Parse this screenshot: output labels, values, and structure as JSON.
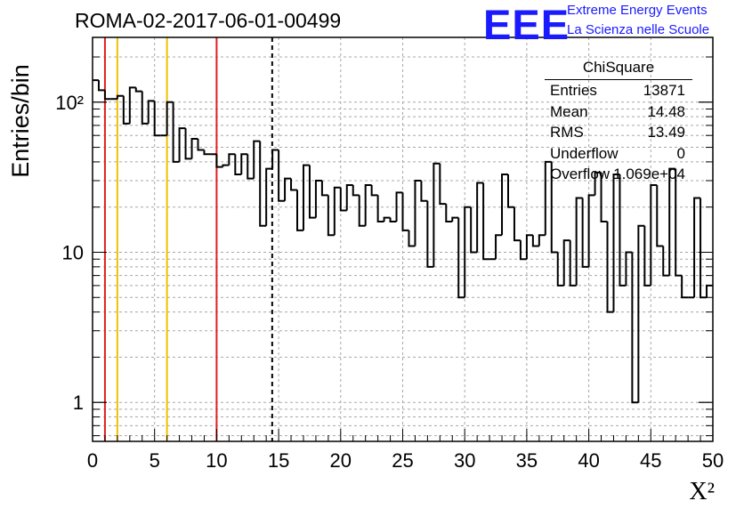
{
  "title": "ROMA-02-2017-06-01-00499",
  "logo": {
    "mark": "EEE",
    "line1": "Extreme Energy Events",
    "line2": "La Scienza nelle Scuole",
    "color": "#1a1aff"
  },
  "stats_box": {
    "name": "ChiSquare",
    "rows": [
      {
        "key": "Entries",
        "value": "13871"
      },
      {
        "key": "Mean",
        "value": "14.48"
      },
      {
        "key": "RMS",
        "value": "13.49"
      },
      {
        "key": "Underflow",
        "value": "0"
      },
      {
        "key": "Overflow",
        "value": "1.069e+04"
      }
    ]
  },
  "chart_data": {
    "type": "histogram",
    "xlabel": "X²",
    "ylabel": "Entries/bin",
    "xlim": [
      0,
      50
    ],
    "ylim": [
      0.55,
      270
    ],
    "yscale": "log",
    "grid": true,
    "bin_width": 0.5,
    "x_ticks": [
      0,
      5,
      10,
      15,
      20,
      25,
      30,
      35,
      40,
      45,
      50
    ],
    "y_ticks": [
      {
        "value": 1,
        "label": "1"
      },
      {
        "value": 10,
        "label": "10"
      },
      {
        "value": 100,
        "label": "10²"
      }
    ],
    "values": [
      140,
      120,
      105,
      105,
      110,
      72,
      125,
      118,
      72,
      102,
      60,
      60,
      100,
      40,
      67,
      42,
      57,
      48,
      45,
      45,
      37,
      38,
      45,
      33,
      45,
      31,
      55,
      15,
      36,
      48,
      22,
      31,
      26,
      14,
      38,
      17,
      30,
      24,
      13,
      27,
      19,
      28,
      24,
      15,
      28,
      24,
      16,
      17,
      16,
      25,
      14,
      11,
      30,
      22,
      8,
      39,
      21,
      16,
      17,
      5,
      20,
      10,
      29,
      9,
      9,
      13,
      33,
      20,
      12,
      9,
      13,
      11,
      13,
      40,
      10,
      6,
      12,
      6,
      23,
      8,
      24,
      34,
      16,
      4,
      33,
      6,
      10,
      1,
      15,
      6,
      28,
      11,
      7,
      36,
      7,
      5,
      5,
      23,
      5,
      6
    ],
    "vertical_lines": [
      {
        "x": 1,
        "color": "#e02020",
        "style": "solid"
      },
      {
        "x": 2,
        "color": "#f0c000",
        "style": "solid"
      },
      {
        "x": 6,
        "color": "#f0c000",
        "style": "solid"
      },
      {
        "x": 10,
        "color": "#e02020",
        "style": "solid"
      },
      {
        "x": 14.48,
        "color": "#000000",
        "style": "dashed"
      }
    ]
  }
}
